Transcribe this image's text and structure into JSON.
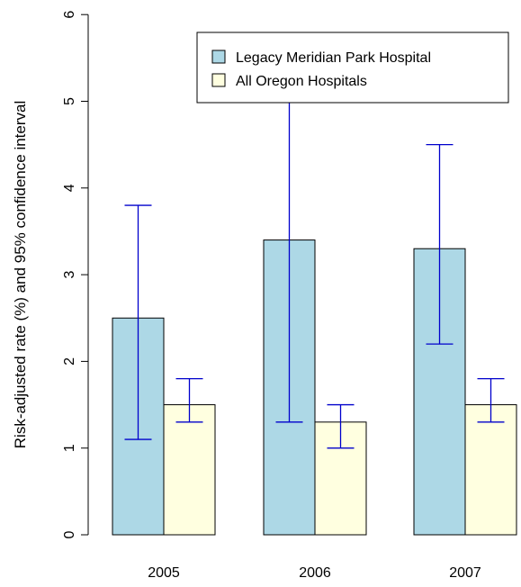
{
  "chart_data": {
    "type": "bar",
    "categories": [
      "2005",
      "2006",
      "2007"
    ],
    "series": [
      {
        "name": "Legacy Meridian Park Hospital",
        "color": "#add8e6",
        "values": [
          2.5,
          3.4,
          3.3
        ],
        "ci_low": [
          1.1,
          1.3,
          2.2
        ],
        "ci_high": [
          3.8,
          5.6,
          4.5
        ]
      },
      {
        "name": "All Oregon Hospitals",
        "color": "#ffffe0",
        "values": [
          1.5,
          1.3,
          1.5
        ],
        "ci_low": [
          1.3,
          1.0,
          1.3
        ],
        "ci_high": [
          1.8,
          1.5,
          1.8
        ]
      }
    ],
    "error_bar_color": "#0000cc",
    "ylabel": "Risk-adjusted rate (%) and 95% confidence interval",
    "xlabel": "",
    "ylim": [
      0,
      6
    ],
    "yticks": [
      "0",
      "1",
      "2",
      "3",
      "4",
      "5",
      "6"
    ],
    "grid": false,
    "legend_position": "top-right"
  }
}
